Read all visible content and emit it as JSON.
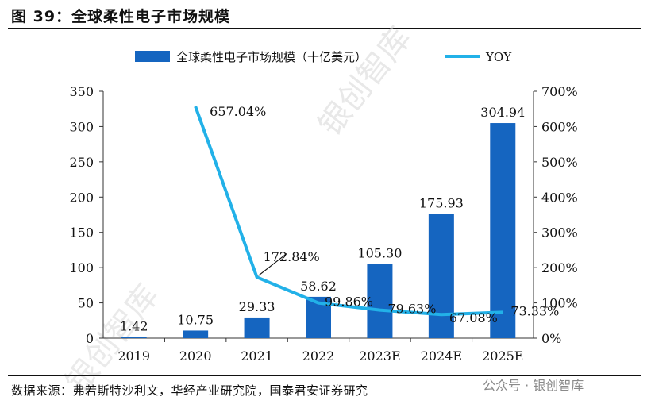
{
  "figure_title": "图 39：全球柔性电子市场规模",
  "source": "数据来源：弗若斯特沙利文，华经产业研究院，国泰君安证券研究",
  "watermark": "公众号 · 银创智库",
  "bg_watermark": "银创智库",
  "chart_data": {
    "type": "bar",
    "categories": [
      "2019",
      "2020",
      "2021",
      "2022",
      "2023E",
      "2024E",
      "2025E"
    ],
    "series": [
      {
        "name": "全球柔性电子市场规模（十亿美元）",
        "type": "bar",
        "axis": "left",
        "color": "#1565C0",
        "values": [
          1.42,
          10.75,
          29.33,
          58.62,
          105.3,
          175.93,
          304.94
        ],
        "labels": [
          "1.42",
          "10.75",
          "29.33",
          "58.62",
          "105.30",
          "175.93",
          "304.94"
        ]
      },
      {
        "name": "YOY",
        "type": "line",
        "axis": "right",
        "color": "#22B1E8",
        "values": [
          null,
          657.04,
          172.84,
          99.86,
          79.63,
          67.08,
          73.33
        ],
        "labels": [
          "",
          "657.04%",
          "172.84%",
          "99.86%",
          "79.63%",
          "67.08%",
          "73.33%"
        ]
      }
    ],
    "ylim": [
      0,
      350
    ],
    "yticks": [
      "0",
      "50",
      "100",
      "150",
      "200",
      "250",
      "300",
      "350"
    ],
    "y2lim": [
      0,
      700
    ],
    "y2ticks": [
      "0%",
      "100%",
      "200%",
      "300%",
      "400%",
      "500%",
      "600%",
      "700%"
    ],
    "legend": "top"
  }
}
